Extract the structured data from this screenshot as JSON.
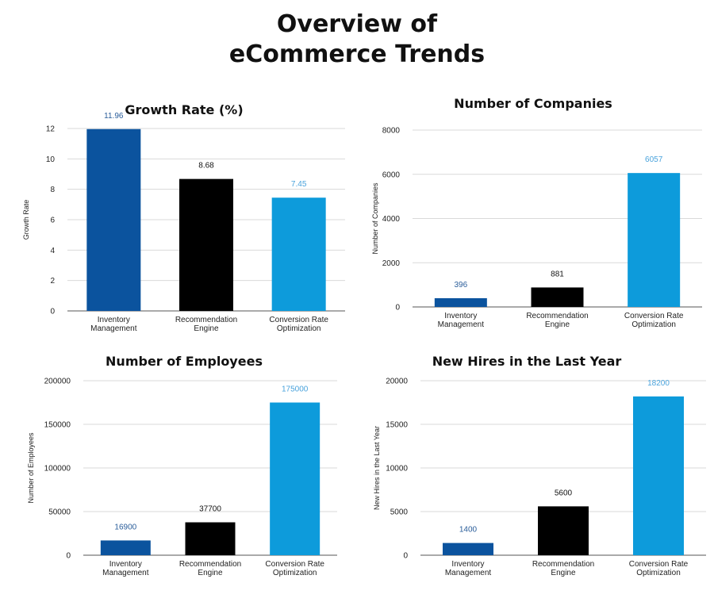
{
  "page": {
    "title_lines": [
      "Overview of",
      "eCommerce Trends"
    ]
  },
  "colors": {
    "series": [
      "#0b539e",
      "#000000",
      "#0d9bdb"
    ],
    "labels": [
      "#2a5d9a",
      "#111111",
      "#4aa3dc"
    ]
  },
  "chart_data": [
    {
      "type": "bar",
      "title": "Growth Rate (%)",
      "ylabel": "Growth Rate",
      "xlabel": "",
      "categories": [
        [
          "Inventory",
          "Management"
        ],
        [
          "Recommendation",
          "Engine"
        ],
        [
          "Conversion Rate",
          "Optimization"
        ]
      ],
      "values": [
        11.96,
        8.68,
        7.45
      ],
      "value_labels": [
        "11.96",
        "8.68",
        "7.45"
      ],
      "ylim": [
        0,
        12
      ],
      "yticks": [
        0,
        2,
        4,
        6,
        8,
        10,
        12
      ],
      "grid": true,
      "legend": "none"
    },
    {
      "type": "bar",
      "title": "Number of Companies",
      "ylabel": "Number of Companies",
      "xlabel": "",
      "categories": [
        [
          "Inventory",
          "Management"
        ],
        [
          "Recommendation",
          "Engine"
        ],
        [
          "Conversion Rate",
          "Optimization"
        ]
      ],
      "values": [
        396,
        881,
        6057
      ],
      "value_labels": [
        "396",
        "881",
        "6057"
      ],
      "ylim": [
        0,
        8000
      ],
      "yticks": [
        0,
        2000,
        4000,
        6000,
        8000
      ],
      "grid": true,
      "legend": "none"
    },
    {
      "type": "bar",
      "title": "Number of Employees",
      "ylabel": "Number of Employees",
      "xlabel": "",
      "categories": [
        [
          "Inventory",
          "Management"
        ],
        [
          "Recommendation",
          "Engine"
        ],
        [
          "Conversion Rate",
          "Optimization"
        ]
      ],
      "values": [
        16900,
        37700,
        175000
      ],
      "value_labels": [
        "16900",
        "37700",
        "175000"
      ],
      "ylim": [
        0,
        200000
      ],
      "yticks": [
        0,
        50000,
        100000,
        150000,
        200000
      ],
      "grid": true,
      "legend": "none"
    },
    {
      "type": "bar",
      "title": "New Hires in the Last Year",
      "ylabel": "New Hires in the Last Year",
      "xlabel": "",
      "categories": [
        [
          "Inventory",
          "Management"
        ],
        [
          "Recommendation",
          "Engine"
        ],
        [
          "Conversion Rate",
          "Optimization"
        ]
      ],
      "values": [
        1400,
        5600,
        18200
      ],
      "value_labels": [
        "1400",
        "5600",
        "18200"
      ],
      "ylim": [
        0,
        20000
      ],
      "yticks": [
        0,
        5000,
        10000,
        15000,
        20000
      ],
      "grid": true,
      "legend": "none"
    }
  ]
}
